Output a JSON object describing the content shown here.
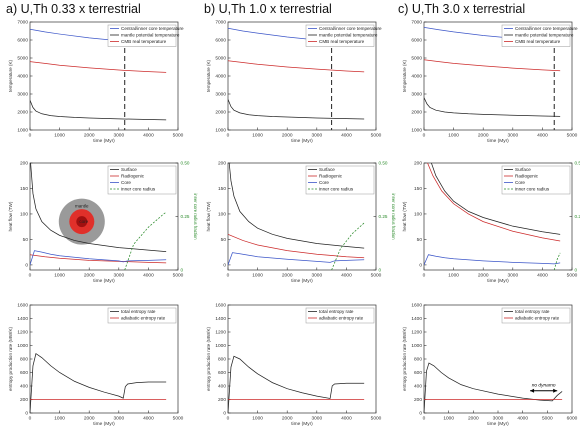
{
  "column_titles": [
    "a) U,Th 0.33 x terrestrial",
    "b) U,Th 1.0 x terrestrial",
    "c) U,Th 3.0 x terrestrial"
  ],
  "colors": {
    "black": "#222222",
    "blue": "#3b55c8",
    "red": "#cc2a2a",
    "green": "#2a8a2a",
    "gray": "#888888"
  },
  "chart_data": [
    {
      "id": "temp-a",
      "type": "line",
      "xlabel": "time (Myr)",
      "ylabel": "temperature (K)",
      "xlim": [
        0,
        5000
      ],
      "ylim": [
        1000,
        7000
      ],
      "xticks": [
        "0",
        "1000",
        "2000",
        "3000",
        "4000",
        "5000"
      ],
      "yticks": [
        "1000",
        "2000",
        "3000",
        "4000",
        "5000",
        "6000",
        "7000"
      ],
      "legend": [
        "Central/inner core temperature",
        "mantle potential temperature",
        "CMB real temperature"
      ],
      "series": [
        {
          "name": "Central/inner core temperature",
          "color": "blue",
          "x": [
            0,
            500,
            1000,
            2000,
            3000,
            4000,
            4600
          ],
          "y": [
            6600,
            6450,
            6330,
            6120,
            5960,
            5820,
            5740
          ]
        },
        {
          "name": "mantle potential temperature",
          "color": "black",
          "x": [
            0,
            100,
            200,
            400,
            700,
            1000,
            1500,
            2000,
            3000,
            4000,
            4600
          ],
          "y": [
            2650,
            2250,
            2050,
            1900,
            1800,
            1750,
            1700,
            1670,
            1620,
            1580,
            1560
          ]
        },
        {
          "name": "CMB real temperature",
          "color": "red",
          "x": [
            0,
            500,
            1000,
            2000,
            3000,
            4000,
            4600
          ],
          "y": [
            4800,
            4700,
            4600,
            4450,
            4330,
            4240,
            4200
          ]
        }
      ],
      "vline": 3200
    },
    {
      "id": "temp-b",
      "type": "line",
      "xlabel": "time (Myr)",
      "ylabel": "temperature (K)",
      "xlim": [
        0,
        5000
      ],
      "ylim": [
        1000,
        7000
      ],
      "xticks": [
        "0",
        "1000",
        "2000",
        "3000",
        "4000",
        "5000"
      ],
      "yticks": [
        "1000",
        "2000",
        "3000",
        "4000",
        "5000",
        "6000",
        "7000"
      ],
      "legend": [
        "Central/inner core temperature",
        "mantle potential temperature",
        "CMB real temperature"
      ],
      "series": [
        {
          "name": "Central/inner core temperature",
          "color": "blue",
          "x": [
            0,
            500,
            1000,
            2000,
            3000,
            4000,
            4600
          ],
          "y": [
            6650,
            6500,
            6380,
            6170,
            6000,
            5880,
            5810
          ]
        },
        {
          "name": "mantle potential temperature",
          "color": "black",
          "x": [
            0,
            100,
            200,
            400,
            700,
            1000,
            1500,
            2000,
            3000,
            4000,
            4600
          ],
          "y": [
            2700,
            2300,
            2100,
            1950,
            1850,
            1800,
            1750,
            1720,
            1670,
            1630,
            1610
          ]
        },
        {
          "name": "CMB real temperature",
          "color": "red",
          "x": [
            0,
            500,
            1000,
            2000,
            3000,
            4000,
            4600
          ],
          "y": [
            4850,
            4750,
            4650,
            4500,
            4380,
            4280,
            4230
          ]
        }
      ],
      "vline": 3500
    },
    {
      "id": "temp-c",
      "type": "line",
      "xlabel": "time (Myr)",
      "ylabel": "temperature (K)",
      "xlim": [
        0,
        5000
      ],
      "ylim": [
        1000,
        7000
      ],
      "xticks": [
        "0",
        "1000",
        "2000",
        "3000",
        "4000",
        "5000"
      ],
      "yticks": [
        "1000",
        "2000",
        "3000",
        "4000",
        "5000",
        "6000",
        "7000"
      ],
      "legend": [
        "Central/inner core temperature",
        "mantle potential temperature",
        "CMB real temperature"
      ],
      "series": [
        {
          "name": "Central/inner core temperature",
          "color": "blue",
          "x": [
            0,
            500,
            1000,
            2000,
            3000,
            4000,
            4600
          ],
          "y": [
            6700,
            6570,
            6450,
            6250,
            6100,
            5990,
            5930
          ]
        },
        {
          "name": "mantle potential temperature",
          "color": "black",
          "x": [
            0,
            100,
            200,
            400,
            700,
            1000,
            1500,
            2000,
            3000,
            4000,
            4600
          ],
          "y": [
            2800,
            2450,
            2250,
            2100,
            2000,
            1950,
            1900,
            1870,
            1820,
            1780,
            1760
          ]
        },
        {
          "name": "CMB real temperature",
          "color": "red",
          "x": [
            0,
            500,
            1000,
            2000,
            3000,
            4000,
            4600
          ],
          "y": [
            4900,
            4800,
            4700,
            4560,
            4440,
            4340,
            4290
          ]
        }
      ],
      "vline": 4400
    },
    {
      "id": "heat-a",
      "type": "line",
      "xlabel": "time (Myr)",
      "ylabel": "heat flow (TW)",
      "y2label": "inner core radius fraction",
      "xlim": [
        0,
        5000
      ],
      "ylim": [
        -10,
        200
      ],
      "y2lim": [
        0,
        0.5
      ],
      "xticks": [
        "0",
        "1000",
        "2000",
        "3000",
        "4000",
        "5000"
      ],
      "yticks": [
        "0",
        "50",
        "100",
        "150",
        "200"
      ],
      "y2ticks": [
        "0",
        "0.25",
        "0.50"
      ],
      "legend": [
        "Surface",
        "Radiogenic",
        "Core",
        "inner core radius"
      ],
      "series": [
        {
          "name": "Surface",
          "color": "black",
          "x": [
            20,
            100,
            200,
            400,
            700,
            1000,
            1500,
            2000,
            3000,
            4000,
            4600
          ],
          "y": [
            200,
            140,
            110,
            85,
            68,
            58,
            48,
            42,
            34,
            29,
            26
          ]
        },
        {
          "name": "Radiogenic",
          "color": "red",
          "x": [
            0,
            500,
            1000,
            2000,
            3000,
            4000,
            4600
          ],
          "y": [
            20,
            16,
            13,
            9,
            7,
            5,
            4
          ]
        },
        {
          "name": "Core",
          "color": "blue",
          "x": [
            0,
            150,
            400,
            700,
            1000,
            2000,
            3000,
            3150,
            3300,
            4000,
            4600
          ],
          "y": [
            0,
            28,
            25,
            21,
            18,
            12,
            8,
            6,
            8,
            9,
            10
          ]
        }
      ],
      "y2series": {
        "name": "inner core radius",
        "color": "green",
        "x": [
          3200,
          3500,
          4000,
          4500,
          4600
        ],
        "y": [
          0,
          0.12,
          0.2,
          0.26,
          0.27
        ]
      },
      "inset_labels": {
        "outer": "mantle",
        "inner": "core"
      }
    },
    {
      "id": "heat-b",
      "type": "line",
      "xlabel": "time (Myr)",
      "ylabel": "heat flow (TW)",
      "y2label": "inner core radius fraction",
      "xlim": [
        0,
        5000
      ],
      "ylim": [
        -10,
        200
      ],
      "y2lim": [
        0,
        0.5
      ],
      "xticks": [
        "0",
        "1000",
        "2000",
        "3000",
        "4000",
        "5000"
      ],
      "yticks": [
        "0",
        "50",
        "100",
        "150",
        "200"
      ],
      "y2ticks": [
        "0",
        "0.25",
        "0.50"
      ],
      "legend": [
        "Surface",
        "Radiogenic",
        "Core",
        "inner core radius"
      ],
      "series": [
        {
          "name": "Surface",
          "color": "black",
          "x": [
            40,
            100,
            200,
            400,
            700,
            1000,
            1500,
            2000,
            3000,
            4000,
            4600
          ],
          "y": [
            200,
            165,
            135,
            105,
            85,
            72,
            60,
            52,
            42,
            36,
            33
          ]
        },
        {
          "name": "Radiogenic",
          "color": "red",
          "x": [
            0,
            500,
            1000,
            2000,
            3000,
            4000,
            4600
          ],
          "y": [
            60,
            48,
            39,
            28,
            21,
            16,
            14
          ]
        },
        {
          "name": "Core",
          "color": "blue",
          "x": [
            0,
            150,
            400,
            700,
            1000,
            2000,
            3000,
            3450,
            3600,
            4000,
            4600
          ],
          "y": [
            0,
            24,
            22,
            19,
            16,
            11,
            7,
            5,
            8,
            9,
            10
          ]
        }
      ],
      "y2series": {
        "name": "inner core radius",
        "color": "green",
        "x": [
          3500,
          3800,
          4200,
          4600
        ],
        "y": [
          0,
          0.1,
          0.17,
          0.22
        ]
      }
    },
    {
      "id": "heat-c",
      "type": "line",
      "xlabel": "time (Myr)",
      "ylabel": "heat flow (TW)",
      "y2label": "inner core radius fraction",
      "xlim": [
        0,
        5000
      ],
      "ylim": [
        -10,
        200
      ],
      "y2lim": [
        0,
        0.5
      ],
      "xticks": [
        "0",
        "1000",
        "2000",
        "3000",
        "4000",
        "5000"
      ],
      "yticks": [
        "0",
        "50",
        "100",
        "150",
        "200"
      ],
      "y2ticks": [
        "0",
        "0.25",
        "0.50"
      ],
      "legend": [
        "Surface",
        "Radiogenic",
        "Core",
        "inner core radius"
      ],
      "series": [
        {
          "name": "Surface",
          "color": "black",
          "x": [
            250,
            400,
            700,
            1000,
            1500,
            2000,
            3000,
            4000,
            4600
          ],
          "y": [
            200,
            175,
            145,
            125,
            105,
            93,
            76,
            65,
            60
          ]
        },
        {
          "name": "Radiogenic",
          "color": "red",
          "x": [
            120,
            300,
            600,
            1000,
            1500,
            2000,
            3000,
            4000,
            4600
          ],
          "y": [
            200,
            175,
            145,
            120,
            100,
            85,
            66,
            53,
            47
          ]
        },
        {
          "name": "Core",
          "color": "blue",
          "x": [
            0,
            150,
            400,
            700,
            1000,
            2000,
            3000,
            4000,
            4400,
            4600
          ],
          "y": [
            0,
            20,
            17,
            14,
            12,
            8,
            5,
            3,
            2,
            4
          ]
        }
      ],
      "y2series": {
        "name": "inner core radius",
        "color": "green",
        "x": [
          4400,
          4500,
          4600
        ],
        "y": [
          0,
          0.05,
          0.08
        ]
      }
    },
    {
      "id": "ent-a",
      "type": "line",
      "xlabel": "time (Myr)",
      "ylabel": "entropy production rate (MW/K)",
      "xlim": [
        0,
        5000
      ],
      "ylim": [
        0,
        1600
      ],
      "xticks": [
        "0",
        "1000",
        "2000",
        "3000",
        "4000",
        "5000"
      ],
      "yticks": [
        "0",
        "200",
        "400",
        "600",
        "800",
        "1000",
        "1200",
        "1400",
        "1600"
      ],
      "legend": [
        "total entropy rate",
        "adiabatic entropy rate"
      ],
      "series": [
        {
          "name": "total entropy rate",
          "color": "black",
          "x": [
            0,
            100,
            200,
            400,
            700,
            1000,
            1500,
            2000,
            2500,
            3000,
            3150,
            3220,
            3300,
            3600,
            4000,
            4600
          ],
          "y": [
            0,
            700,
            880,
            820,
            700,
            600,
            470,
            380,
            310,
            250,
            220,
            390,
            430,
            450,
            460,
            460
          ]
        },
        {
          "name": "adiabatic entropy rate",
          "color": "red",
          "x": [
            0,
            4600
          ],
          "y": [
            200,
            200
          ]
        }
      ]
    },
    {
      "id": "ent-b",
      "type": "line",
      "xlabel": "time (Myr)",
      "ylabel": "entropy production rate (MW/K)",
      "xlim": [
        0,
        5000
      ],
      "ylim": [
        0,
        1600
      ],
      "xticks": [
        "0",
        "1000",
        "2000",
        "3000",
        "4000",
        "5000"
      ],
      "yticks": [
        "0",
        "200",
        "400",
        "600",
        "800",
        "1000",
        "1200",
        "1400",
        "1600"
      ],
      "legend": [
        "total entropy rate",
        "adiabatic entropy rate"
      ],
      "series": [
        {
          "name": "total entropy rate",
          "color": "black",
          "x": [
            0,
            100,
            200,
            400,
            700,
            1000,
            1500,
            2000,
            2500,
            3000,
            3450,
            3520,
            3600,
            4000,
            4600
          ],
          "y": [
            0,
            680,
            840,
            800,
            680,
            580,
            450,
            360,
            300,
            250,
            215,
            400,
            430,
            440,
            440
          ]
        },
        {
          "name": "adiabatic entropy rate",
          "color": "red",
          "x": [
            0,
            4600
          ],
          "y": [
            200,
            200
          ]
        }
      ]
    },
    {
      "id": "ent-c",
      "type": "line",
      "xlabel": "time (Myr)",
      "ylabel": "entropy production rate (MW/K)",
      "xlim": [
        0,
        6000
      ],
      "ylim": [
        0,
        1600
      ],
      "xticks": [
        "0",
        "1000",
        "2000",
        "3000",
        "4000",
        "5000",
        "6000"
      ],
      "yticks": [
        "0",
        "200",
        "400",
        "600",
        "800",
        "1000",
        "1200",
        "1400",
        "1600"
      ],
      "legend": [
        "total entropy rate",
        "adiabatic entropy rate"
      ],
      "series": [
        {
          "name": "total entropy rate",
          "color": "black",
          "x": [
            0,
            100,
            200,
            400,
            700,
            1000,
            1500,
            2000,
            3000,
            4000,
            4700,
            5200,
            5400,
            5600
          ],
          "y": [
            0,
            620,
            740,
            700,
            600,
            520,
            420,
            360,
            280,
            220,
            190,
            180,
            260,
            320
          ]
        },
        {
          "name": "adiabatic entropy rate",
          "color": "red",
          "x": [
            0,
            5600
          ],
          "y": [
            200,
            200
          ]
        }
      ],
      "annotation": {
        "text": "no dynamo",
        "x_from": 4300,
        "x_to": 5400,
        "y": 330
      }
    }
  ]
}
